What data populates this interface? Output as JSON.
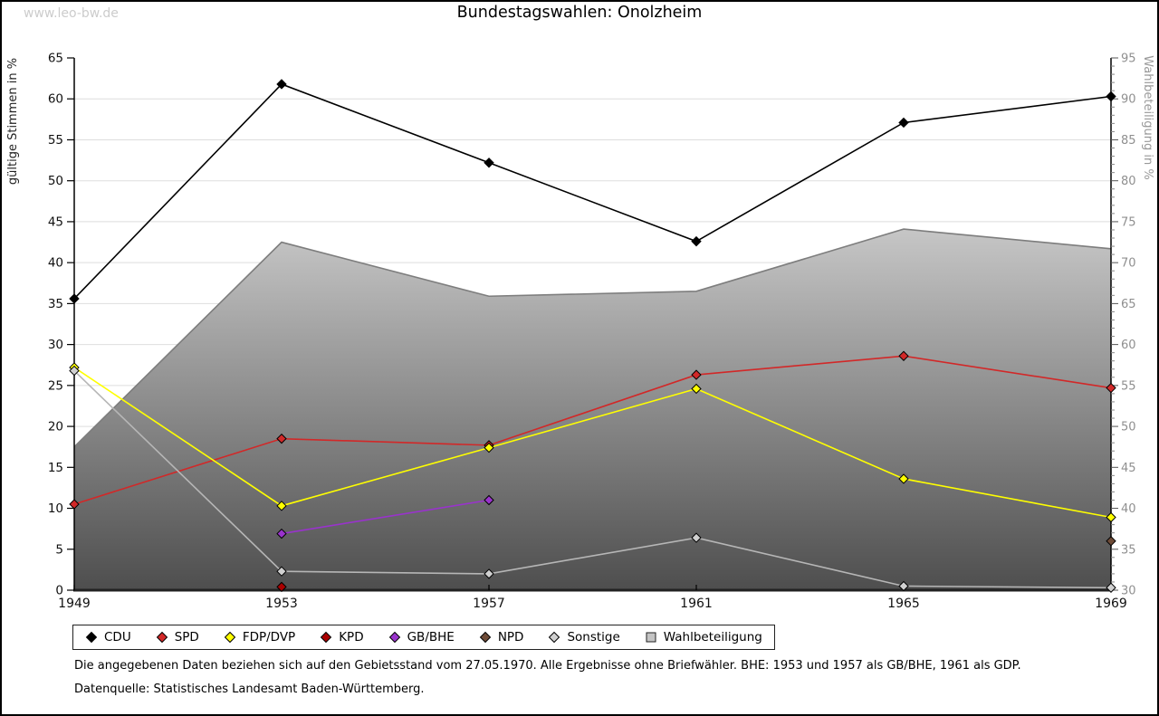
{
  "watermark": "www.leo-bw.de",
  "title": "Bundestagswahlen: Onolzheim",
  "footnotes": [
    "Die angegebenen Daten beziehen sich auf den Gebietsstand vom 27.05.1970. Alle Ergebnisse ohne Briefwähler. BHE: 1953 und 1957 als GB/BHE, 1961 als GDP.",
    "Datenquelle: Statistisches Landesamt Baden-Württemberg."
  ],
  "chart_data": {
    "type": "line",
    "title": "Bundestagswahlen: Onolzheim",
    "x": [
      1949,
      1953,
      1957,
      1961,
      1965,
      1969
    ],
    "left_axis": {
      "label": "gültige Stimmen in %",
      "min": 0,
      "max": 65,
      "tick_step": 5
    },
    "right_axis": {
      "label": "Wahlbeteiligung in %",
      "min": 30,
      "max": 95,
      "tick_step": 5,
      "minor_step": 1
    },
    "grid": "horizontal",
    "legend_position": "bottom",
    "series": [
      {
        "name": "CDU",
        "axis": "left",
        "marker": "diamond",
        "color": "#000000",
        "values": [
          35.6,
          61.8,
          52.2,
          42.6,
          57.1,
          60.3
        ]
      },
      {
        "name": "SPD",
        "axis": "left",
        "marker": "diamond",
        "color": "#d22828",
        "values": [
          10.5,
          18.5,
          17.7,
          26.3,
          28.6,
          24.7
        ]
      },
      {
        "name": "FDP/DVP",
        "axis": "left",
        "marker": "diamond",
        "color": "#ffff00",
        "values": [
          27.2,
          10.3,
          17.4,
          24.6,
          13.6,
          8.9
        ]
      },
      {
        "name": "KPD",
        "axis": "left",
        "marker": "diamond",
        "color": "#aa0000",
        "values": [
          null,
          0.4,
          null,
          null,
          null,
          null
        ]
      },
      {
        "name": "GB/BHE",
        "axis": "left",
        "marker": "diamond",
        "color": "#9933cc",
        "values": [
          null,
          6.9,
          11.0,
          null,
          null,
          null
        ]
      },
      {
        "name": "NPD",
        "axis": "left",
        "marker": "diamond",
        "color": "#6e4b37",
        "values": [
          null,
          null,
          null,
          null,
          null,
          6.0
        ]
      },
      {
        "name": "Sonstige",
        "axis": "left",
        "marker": "diamond",
        "color": "#d0d0d0",
        "line_color": "#b6b6b6",
        "values": [
          26.8,
          2.3,
          2.0,
          6.4,
          0.5,
          0.3
        ]
      },
      {
        "name": "Wahlbeteiligung",
        "axis": "right",
        "type": "area",
        "marker": "square",
        "color": "#c4c4c4",
        "line_color": "#7d7d7d",
        "gradient_top": "#ffffff",
        "gradient_bottom": "#4e4e4e",
        "values": [
          47.5,
          72.5,
          65.9,
          66.5,
          74.1,
          71.7
        ]
      }
    ]
  }
}
